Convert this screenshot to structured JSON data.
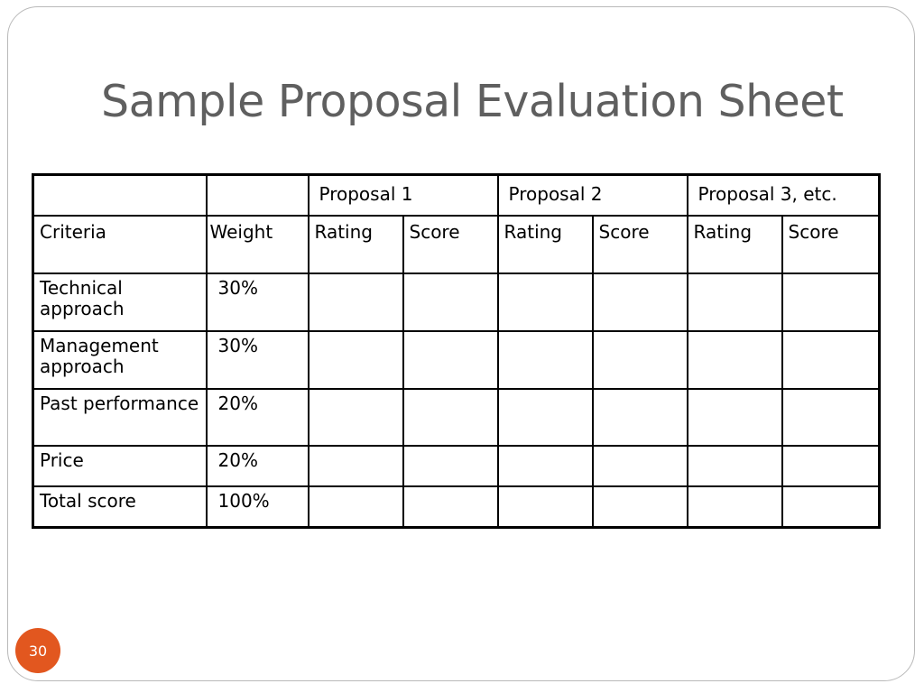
{
  "slide": {
    "title": "Sample Proposal Evaluation Sheet",
    "page_number": "30",
    "accent_color": "#e2571f",
    "title_color": "#5f5f5f"
  },
  "table": {
    "proposal_headers": [
      "Proposal 1",
      "Proposal 2",
      "Proposal 3, etc."
    ],
    "column_headers": [
      "Criteria",
      "Weight",
      "Rating",
      "Score",
      "Rating",
      "Score",
      "Rating",
      "Score"
    ],
    "rows": [
      {
        "criteria": "Technical approach",
        "weight": "30%"
      },
      {
        "criteria": "Management approach",
        "weight": "30%"
      },
      {
        "criteria": "Past performance",
        "weight": "20%"
      },
      {
        "criteria": "Price",
        "weight": "20%"
      },
      {
        "criteria": "Total score",
        "weight": "100%"
      }
    ]
  }
}
